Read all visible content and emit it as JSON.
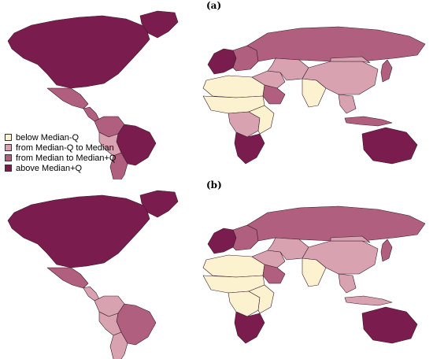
{
  "panels": [
    {
      "label": "(a)"
    },
    {
      "label": "(b)"
    }
  ],
  "legend": {
    "items": [
      {
        "label": "below Median-Q",
        "color": "#fcf2cf"
      },
      {
        "label": "from Median-Q to Median",
        "color": "#d8a2b0"
      },
      {
        "label": "from Median to Median+Q",
        "color": "#b0607e"
      },
      {
        "label": "above Median+Q",
        "color": "#7a1c4e"
      }
    ]
  },
  "map_a": {
    "regions": [
      {
        "name": "north-america",
        "class": 4
      },
      {
        "name": "greenland",
        "class": 4
      },
      {
        "name": "mexico",
        "class": 3
      },
      {
        "name": "central-america",
        "class": 3
      },
      {
        "name": "colombia-venezuela",
        "class": 3
      },
      {
        "name": "brazil",
        "class": 4
      },
      {
        "name": "peru-bolivia",
        "class": 2
      },
      {
        "name": "southern-cone",
        "class": 3
      },
      {
        "name": "western-europe",
        "class": 4
      },
      {
        "name": "eastern-europe",
        "class": 3
      },
      {
        "name": "russia",
        "class": 3
      },
      {
        "name": "north-africa",
        "class": 1
      },
      {
        "name": "sahel",
        "class": 1
      },
      {
        "name": "central-africa",
        "class": 2
      },
      {
        "name": "east-africa",
        "class": 1
      },
      {
        "name": "southern-africa",
        "class": 4
      },
      {
        "name": "middle-east",
        "class": 2
      },
      {
        "name": "saudi-arabia",
        "class": 3
      },
      {
        "name": "central-asia",
        "class": 2
      },
      {
        "name": "india",
        "class": 1
      },
      {
        "name": "china",
        "class": 2
      },
      {
        "name": "mongolia",
        "class": 2
      },
      {
        "name": "southeast-asia",
        "class": 2
      },
      {
        "name": "indonesia",
        "class": 3
      },
      {
        "name": "japan",
        "class": 3
      },
      {
        "name": "australia",
        "class": 4
      }
    ]
  },
  "map_b": {
    "regions": [
      {
        "name": "north-america",
        "class": 4
      },
      {
        "name": "greenland",
        "class": 4
      },
      {
        "name": "mexico",
        "class": 3
      },
      {
        "name": "central-america",
        "class": 2
      },
      {
        "name": "colombia-venezuela",
        "class": 2
      },
      {
        "name": "brazil",
        "class": 3
      },
      {
        "name": "peru-bolivia",
        "class": 2
      },
      {
        "name": "southern-cone",
        "class": 2
      },
      {
        "name": "western-europe",
        "class": 4
      },
      {
        "name": "eastern-europe",
        "class": 3
      },
      {
        "name": "russia",
        "class": 3
      },
      {
        "name": "north-africa",
        "class": 1
      },
      {
        "name": "sahel",
        "class": 1
      },
      {
        "name": "central-africa",
        "class": 1
      },
      {
        "name": "east-africa",
        "class": 1
      },
      {
        "name": "southern-africa",
        "class": 4
      },
      {
        "name": "middle-east",
        "class": 2
      },
      {
        "name": "saudi-arabia",
        "class": 3
      },
      {
        "name": "central-asia",
        "class": 2
      },
      {
        "name": "india",
        "class": 1
      },
      {
        "name": "china",
        "class": 2
      },
      {
        "name": "mongolia",
        "class": 2
      },
      {
        "name": "southeast-asia",
        "class": 2
      },
      {
        "name": "indonesia",
        "class": 2
      },
      {
        "name": "japan",
        "class": 3
      },
      {
        "name": "australia",
        "class": 4
      }
    ]
  }
}
